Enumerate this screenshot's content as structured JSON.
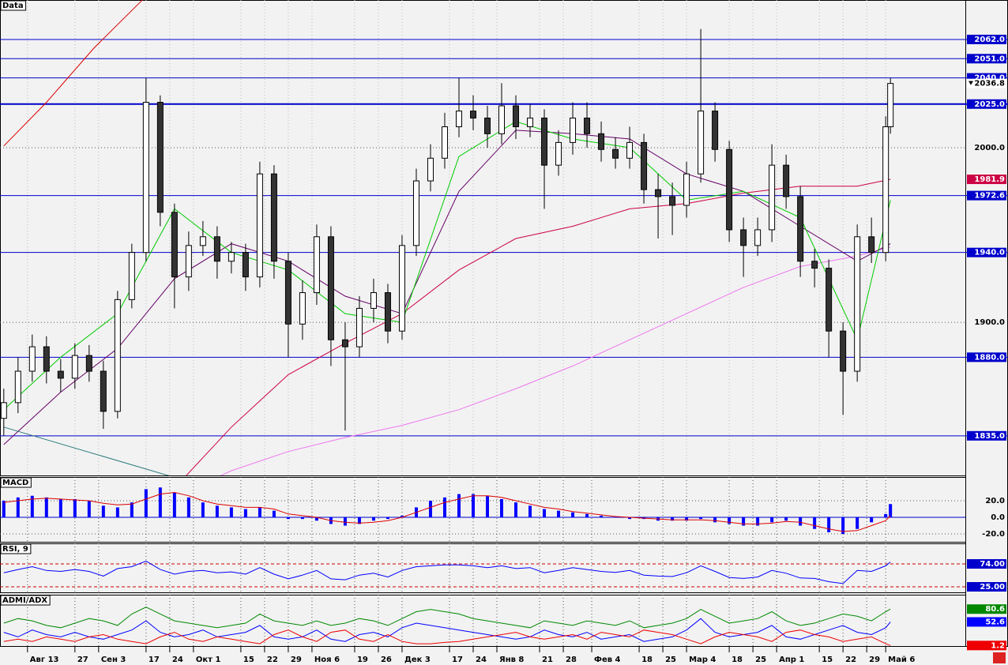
{
  "chart_data": [
    {
      "type": "candlestick",
      "title": "Data",
      "x": [
        0,
        3,
        6,
        9,
        12,
        15,
        18,
        21,
        24,
        27,
        30,
        33,
        36,
        39,
        42,
        45,
        48,
        51,
        54,
        57,
        60,
        63,
        66,
        69,
        72,
        75,
        78,
        81,
        84,
        87,
        90,
        93,
        96,
        99,
        102,
        105,
        108,
        111,
        114,
        117,
        120,
        123,
        126,
        129,
        132,
        135,
        138,
        141,
        144,
        147,
        150,
        153,
        156,
        159,
        162,
        165,
        168,
        171,
        174,
        177,
        180,
        183,
        186,
        187
      ],
      "open": [
        1845,
        1854,
        1872,
        1886,
        1872,
        1868,
        1881,
        1872,
        1849,
        1913,
        1940,
        2026,
        1963,
        1926,
        1944,
        1949,
        1935,
        1940,
        1926,
        1985,
        1935,
        1899,
        1917,
        1949,
        1890,
        1886,
        1908,
        1917,
        1895,
        1944,
        1981,
        1994,
        2012,
        2021,
        2017,
        2008,
        2024,
        2012,
        2017,
        1990,
        2003,
        2017,
        2008,
        1999,
        1994,
        2003,
        1976,
        1972,
        1967,
        1985,
        2021,
        1999,
        1953,
        1944,
        1953,
        1990,
        1972,
        1935,
        1931,
        1895,
        1872,
        1949,
        1940,
        2012
      ],
      "high": [
        1862,
        1880,
        1893,
        1892,
        1879,
        1888,
        1887,
        1878,
        1918,
        1945,
        2040,
        2030,
        1968,
        1952,
        1958,
        1955,
        1946,
        1945,
        1992,
        1990,
        1940,
        1924,
        1956,
        1955,
        1900,
        1915,
        1925,
        1922,
        1950,
        1988,
        2002,
        2020,
        2040,
        2030,
        2024,
        2037,
        2030,
        2025,
        2022,
        2010,
        2026,
        2026,
        2015,
        2006,
        2012,
        2008,
        1985,
        1980,
        1992,
        2068,
        2026,
        2004,
        1960,
        1960,
        2002,
        1996,
        1978,
        1942,
        1936,
        1900,
        1956,
        1960,
        2018,
        2040
      ],
      "low": [
        1835,
        1848,
        1866,
        1865,
        1860,
        1862,
        1866,
        1839,
        1845,
        1908,
        1935,
        1955,
        1908,
        1918,
        1938,
        1925,
        1928,
        1918,
        1920,
        1925,
        1880,
        1890,
        1910,
        1875,
        1838,
        1880,
        1900,
        1888,
        1890,
        1938,
        1975,
        1988,
        2006,
        2010,
        2000,
        2002,
        2005,
        2006,
        1965,
        1984,
        1996,
        2000,
        1992,
        1988,
        1988,
        1968,
        1948,
        1950,
        1960,
        1980,
        1992,
        1946,
        1926,
        1938,
        1946,
        1965,
        1926,
        1920,
        1880,
        1847,
        1866,
        1934,
        1935,
        2008
      ],
      "close": [
        1854,
        1872,
        1886,
        1872,
        1868,
        1881,
        1872,
        1849,
        1913,
        1940,
        2026,
        1963,
        1926,
        1944,
        1949,
        1935,
        1940,
        1926,
        1985,
        1935,
        1899,
        1917,
        1949,
        1890,
        1886,
        1908,
        1917,
        1895,
        1944,
        1981,
        1994,
        2012,
        2021,
        2017,
        2008,
        2024,
        2012,
        2017,
        1990,
        2003,
        2017,
        2008,
        1999,
        1994,
        2003,
        1976,
        1972,
        1967,
        1985,
        2021,
        1999,
        1953,
        1944,
        1953,
        1990,
        1972,
        1935,
        1931,
        1895,
        1872,
        1949,
        1940,
        2012,
        2036.8
      ],
      "up_color": "#ffffff",
      "down_color": "#333333",
      "xlim": [
        -0.8,
        202.8
      ],
      "ylim": [
        1812.3,
        2084.6
      ],
      "xticks": [
        {
          "value": 5,
          "label": "Авг 13"
        },
        {
          "value": 15,
          "label": "27"
        },
        {
          "value": 20,
          "label": "Сен 3"
        },
        {
          "value": 30,
          "label": "17"
        },
        {
          "value": 35,
          "label": "24"
        },
        {
          "value": 40,
          "label": "Окт 1"
        },
        {
          "value": 50,
          "label": "15"
        },
        {
          "value": 55,
          "label": "22"
        },
        {
          "value": 60,
          "label": "29"
        },
        {
          "value": 65,
          "label": "Ноя 6"
        },
        {
          "value": 74,
          "label": "19"
        },
        {
          "value": 79,
          "label": "26"
        },
        {
          "value": 84,
          "label": "Дек 3"
        },
        {
          "value": 94,
          "label": "17"
        },
        {
          "value": 99,
          "label": "24"
        },
        {
          "value": 104,
          "label": "Янв 8"
        },
        {
          "value": 113,
          "label": "21"
        },
        {
          "value": 118,
          "label": "28"
        },
        {
          "value": 124,
          "label": "Фев 4"
        },
        {
          "value": 134,
          "label": "18"
        },
        {
          "value": 139,
          "label": "25"
        },
        {
          "value": 144,
          "label": "Мар 4"
        },
        {
          "value": 153,
          "label": "18"
        },
        {
          "value": 158,
          "label": "25"
        },
        {
          "value": 163,
          "label": "Апр 1"
        },
        {
          "value": 172,
          "label": "15"
        },
        {
          "value": 177,
          "label": "22"
        },
        {
          "value": 182,
          "label": "29"
        },
        {
          "value": 186,
          "label": "Май 6"
        }
      ],
      "yticks": [
        {
          "value": 2000,
          "label": "2000.0"
        },
        {
          "value": 1900,
          "label": "1900.0"
        }
      ],
      "hlines": [
        {
          "value": 2062,
          "label": "2062.0",
          "width": 1
        },
        {
          "value": 2051,
          "label": "2051.0",
          "width": 1
        },
        {
          "value": 2040,
          "label": "2040.0",
          "width": 1
        },
        {
          "value": 2025,
          "label": "2025.0",
          "width": 2
        },
        {
          "value": 1972.6,
          "label": "1972.6",
          "width": 1
        },
        {
          "value": 1940,
          "label": "1940.0",
          "width": 1
        },
        {
          "value": 1880,
          "label": "1880.0",
          "width": 1
        },
        {
          "value": 1835,
          "label": "1835.0",
          "width": 1
        }
      ],
      "hline_color": "#0000cc",
      "overlays": [
        {
          "color": "#ee77ee",
          "x": [
            0,
            12,
            24,
            36,
            48,
            60,
            72,
            84,
            96,
            108,
            120,
            132,
            144,
            156,
            168,
            180,
            187
          ],
          "values": [
            1740,
            1760,
            1780,
            1800,
            1815,
            1826,
            1834,
            1841,
            1850,
            1862,
            1875,
            1890,
            1905,
            1920,
            1932,
            1938,
            1943.2
          ]
        },
        {
          "color": "#cc0044",
          "tag": true,
          "x": [
            0,
            12,
            24,
            36,
            48,
            60,
            72,
            84,
            96,
            108,
            120,
            132,
            144,
            156,
            168,
            180,
            187
          ],
          "values": [
            1700,
            1740,
            1775,
            1805,
            1840,
            1870,
            1888,
            1905,
            1930,
            1948,
            1955,
            1965,
            1968,
            1974,
            1978,
            1978,
            1981.9
          ]
        },
        {
          "color": "#660066",
          "x": [
            0,
            12,
            24,
            36,
            48,
            60,
            72,
            84,
            96,
            108,
            120,
            132,
            144,
            156,
            168,
            180,
            187
          ],
          "values": [
            1830,
            1860,
            1885,
            1925,
            1945,
            1935,
            1915,
            1905,
            1975,
            2010,
            2008,
            2005,
            1985,
            1975,
            1955,
            1935,
            1945
          ]
        },
        {
          "color": "#00cc00",
          "x": [
            0,
            12,
            24,
            36,
            48,
            60,
            72,
            84,
            96,
            108,
            120,
            132,
            144,
            156,
            168,
            180,
            187
          ],
          "values": [
            1850,
            1880,
            1905,
            1965,
            1940,
            1930,
            1905,
            1900,
            1995,
            2015,
            2005,
            2000,
            1970,
            1975,
            1960,
            1890,
            1970
          ]
        },
        {
          "color": "#dd0000",
          "x": [
            0,
            9,
            19,
            29,
            35
          ],
          "values": [
            2001,
            2026,
            2057,
            2084,
            2100
          ]
        },
        {
          "color": "#2a7a7a",
          "x": [
            0,
            35
          ],
          "values": [
            1840,
            1812
          ]
        }
      ],
      "grid": true
    },
    {
      "type": "macd",
      "title": "MACD",
      "color": "#0000ff",
      "values": [
        20,
        24,
        26,
        24,
        22,
        22,
        20,
        14,
        12,
        18,
        34,
        36,
        30,
        24,
        18,
        14,
        12,
        10,
        12,
        8,
        -2,
        -2,
        -4,
        -8,
        -10,
        -8,
        -4,
        -2,
        2,
        12,
        20,
        24,
        28,
        28,
        26,
        22,
        18,
        14,
        10,
        8,
        6,
        4,
        2,
        0,
        -2,
        -2,
        -4,
        -4,
        -4,
        -2,
        -6,
        -8,
        -10,
        -10,
        -6,
        -4,
        -10,
        -14,
        -18,
        -20,
        -14,
        -6,
        4,
        16
      ],
      "signal": {
        "color": "#dd0000",
        "values": [
          18,
          20,
          22,
          23,
          22,
          21,
          20,
          17,
          15,
          16,
          22,
          28,
          30,
          26,
          20,
          16,
          14,
          12,
          12,
          10,
          4,
          2,
          0,
          -4,
          -6,
          -7,
          -6,
          -4,
          0,
          6,
          12,
          18,
          22,
          26,
          26,
          24,
          20,
          16,
          12,
          10,
          7,
          5,
          3,
          1,
          0,
          -1,
          -2,
          -3,
          -3,
          -3,
          -4,
          -6,
          -8,
          -8,
          -7,
          -5,
          -6,
          -10,
          -14,
          -17,
          -16,
          -10,
          -4,
          2
        ]
      },
      "ylim": [
        -29.5,
        48.6
      ],
      "yticks": [
        {
          "value": 20,
          "label": "20.0"
        },
        {
          "value": 0,
          "label": "0.0"
        },
        {
          "value": -20,
          "label": "-20.0"
        }
      ],
      "zero_line_color": "#0000cc"
    },
    {
      "type": "line",
      "title": "RSI, 9",
      "color": "#0000ff",
      "values": [
        55,
        62,
        68,
        60,
        58,
        62,
        58,
        48,
        64,
        68,
        80,
        62,
        52,
        58,
        60,
        55,
        57,
        52,
        66,
        52,
        42,
        50,
        60,
        42,
        40,
        50,
        54,
        46,
        60,
        68,
        70,
        72,
        72,
        70,
        66,
        70,
        64,
        66,
        55,
        60,
        66,
        62,
        58,
        56,
        60,
        50,
        48,
        47,
        55,
        70,
        58,
        45,
        43,
        46,
        60,
        54,
        44,
        43,
        36,
        32,
        60,
        58,
        70,
        78
      ],
      "levels": [
        {
          "value": 74,
          "label": "74.00"
        },
        {
          "value": 25,
          "label": "25.00"
        }
      ],
      "level_color": "#cc0000",
      "level_label_color": "#0000cc",
      "ylim": [
        13.2,
        117.9
      ]
    },
    {
      "type": "multiline",
      "title": "ADMI/ADX",
      "series": [
        {
          "color": "#008800",
          "values": [
            50,
            60,
            55,
            45,
            40,
            50,
            60,
            55,
            45,
            70,
            85,
            70,
            55,
            50,
            45,
            40,
            45,
            50,
            70,
            55,
            50,
            45,
            55,
            45,
            50,
            60,
            55,
            45,
            60,
            75,
            80,
            75,
            70,
            60,
            55,
            50,
            45,
            40,
            55,
            50,
            45,
            55,
            50,
            45,
            55,
            40,
            45,
            50,
            60,
            80,
            65,
            50,
            55,
            60,
            75,
            55,
            45,
            50,
            60,
            70,
            65,
            55,
            75,
            80.6
          ]
        },
        {
          "color": "#0000ff",
          "values": [
            30,
            20,
            35,
            25,
            20,
            30,
            20,
            15,
            25,
            35,
            55,
            30,
            20,
            25,
            35,
            20,
            25,
            30,
            45,
            20,
            15,
            20,
            35,
            15,
            10,
            25,
            30,
            20,
            40,
            50,
            45,
            40,
            35,
            30,
            25,
            20,
            15,
            20,
            35,
            25,
            20,
            30,
            15,
            20,
            25,
            10,
            15,
            20,
            35,
            60,
            30,
            20,
            25,
            30,
            45,
            20,
            15,
            25,
            35,
            45,
            30,
            25,
            40,
            52.6
          ]
        },
        {
          "color": "#ee0000",
          "values": [
            10,
            15,
            10,
            20,
            15,
            10,
            20,
            25,
            15,
            10,
            5,
            20,
            30,
            15,
            10,
            20,
            15,
            10,
            5,
            25,
            35,
            20,
            10,
            30,
            35,
            15,
            10,
            25,
            10,
            5,
            5,
            8,
            10,
            15,
            20,
            25,
            30,
            20,
            15,
            20,
            25,
            15,
            30,
            25,
            20,
            35,
            30,
            25,
            15,
            5,
            20,
            30,
            25,
            20,
            10,
            30,
            35,
            25,
            20,
            10,
            15,
            20,
            5,
            1.2
          ]
        }
      ],
      "ylim": [
        0,
        112
      ]
    }
  ]
}
